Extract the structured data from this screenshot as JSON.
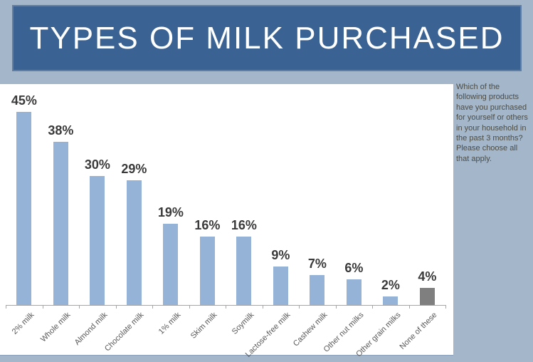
{
  "window": {
    "title": "TYPES OF MILK PURCHASED"
  },
  "sidebar": {
    "note": "Which of the following products have you purchased for yourself or others in your household in the past 3 months? Please choose all that apply."
  },
  "colors": {
    "page_background": "#a3b6ca",
    "header_fill": "#3a6292",
    "header_border": "#5f7ea5",
    "header_text": "#ffffff",
    "chart_panel_background": "#ffffff",
    "bar_fill": "#95b3d7",
    "highlight_bar_fill": "#7f7f7f",
    "axis": "#a6a6a6",
    "value_label_text": "#3a3a3a",
    "category_label_text": "#595959",
    "note_text": "#4c4c44"
  },
  "chart_data": {
    "type": "bar",
    "title": "TYPES OF MILK PURCHASED",
    "categories": [
      "2% milk",
      "Whole milk",
      "Almond milk",
      "Chocolate milk",
      "1% milk",
      "Skim milk",
      "Soymilk",
      "Lactose-free milk",
      "Cashew milk",
      "Other nut milks",
      "Other grain milks",
      "None of these"
    ],
    "values": [
      45,
      38,
      30,
      29,
      19,
      16,
      16,
      9,
      7,
      6,
      2,
      4
    ],
    "data_labels": [
      "45%",
      "38%",
      "30%",
      "29%",
      "19%",
      "16%",
      "16%",
      "9%",
      "7%",
      "6%",
      "2%",
      "4%"
    ],
    "unit": "%",
    "xlabel": "",
    "ylabel": "",
    "ylim": [
      0,
      50
    ],
    "grid": false,
    "legend": false,
    "y_axis_visible": false,
    "label_rotation_deg": 45,
    "bar_color": "#95b3d7",
    "highlight_index": 11,
    "highlight_color": "#7f7f7f",
    "highlight_category": "None of these"
  }
}
